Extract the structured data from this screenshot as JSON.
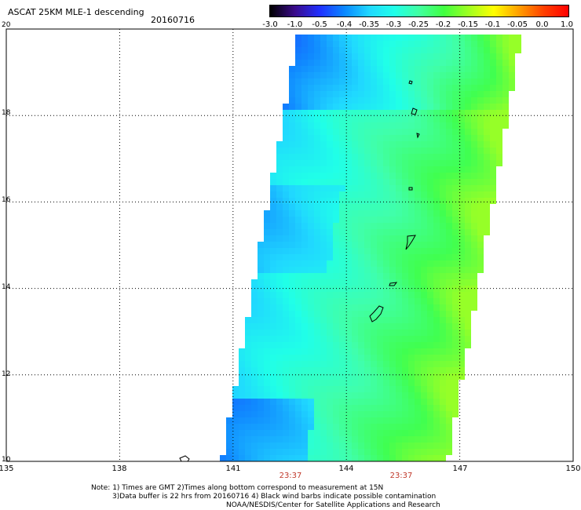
{
  "header": {
    "title": "ASCAT 25KM MLE-1 descending",
    "date": "20160716"
  },
  "colorbar": {
    "labels": [
      "-3.0",
      "-1.0",
      "-0.5",
      "-0.4",
      "-0.35",
      "-0.3",
      "-0.25",
      "-0.2",
      "-0.15",
      "-0.1",
      "-0.05",
      "0.0",
      "1.0"
    ],
    "colors": [
      "#000000",
      "#3a0a8a",
      "#2030ff",
      "#0a88ff",
      "#20d8ff",
      "#20ffe8",
      "#40ffa0",
      "#40ff40",
      "#a0ff20",
      "#ffff00",
      "#ffa000",
      "#ff4000",
      "#ff0000"
    ]
  },
  "map": {
    "lon_range": [
      135,
      150
    ],
    "lat_range": [
      10,
      20
    ],
    "x_ticks": [
      "135",
      "138",
      "141",
      "144",
      "147",
      "150"
    ],
    "y_ticks": [
      "20",
      "18",
      "16",
      "14",
      "12",
      "10"
    ],
    "grid": "dotted",
    "swath_times": [
      "23:37",
      "23:37"
    ]
  },
  "footer": {
    "note_line1": "Note: 1) Times are GMT 2)Times along bottom correspond to measurement at 15N",
    "note_line2": "3)Data buffer is 22 hrs from 20160716 4) Black wind barbs indicate possible contamination",
    "note_line3": "NOAA/NESDIS/Center for Satellite Applications and Research"
  }
}
